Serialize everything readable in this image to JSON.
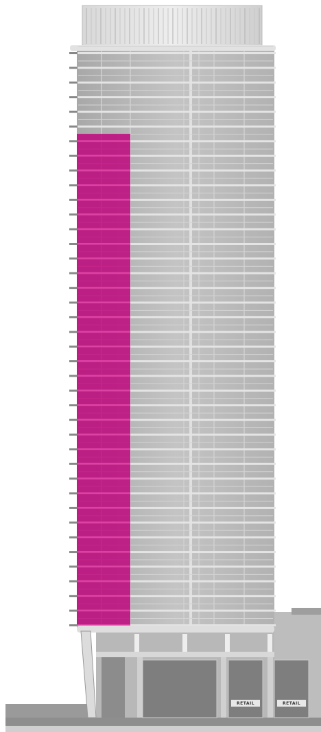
{
  "signs": [
    "RETAIL",
    "RETAIL"
  ]
}
